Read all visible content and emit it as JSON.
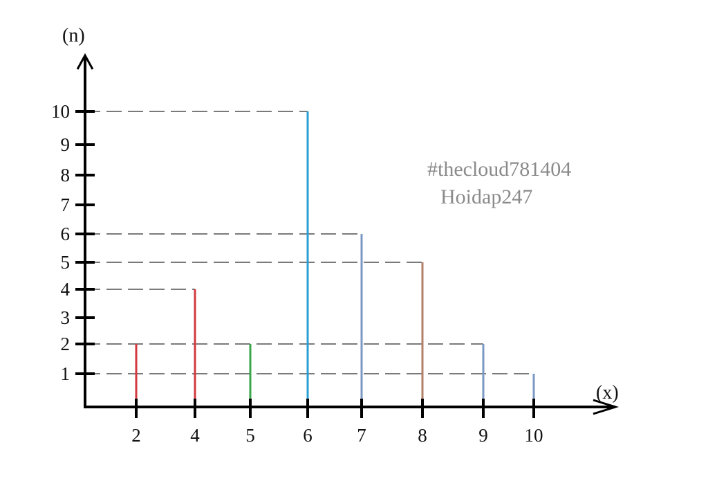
{
  "chart_data": {
    "type": "bar",
    "categories": [
      "2",
      "4",
      "5",
      "6",
      "7",
      "8",
      "9",
      "10"
    ],
    "values": [
      2,
      4,
      2,
      10,
      6,
      5,
      2,
      1
    ],
    "bar_colors": [
      "#d23a3f",
      "#d23a3f",
      "#3aa64a",
      "#2a9fd6",
      "#7b98c4",
      "#b08068",
      "#7b98c4",
      "#7b98c4"
    ],
    "xlabel": "(x)",
    "ylabel": "(n)",
    "y_ticks": [
      "1",
      "2",
      "3",
      "4",
      "5",
      "6",
      "7",
      "8",
      "9",
      "10"
    ],
    "ylim": [
      0,
      10
    ],
    "grid": false,
    "guide_lines": "dashed",
    "guide_color": "#7a7a7a"
  },
  "watermark": {
    "line1": "#thecloud781404",
    "line2": "Hoidap247"
  }
}
